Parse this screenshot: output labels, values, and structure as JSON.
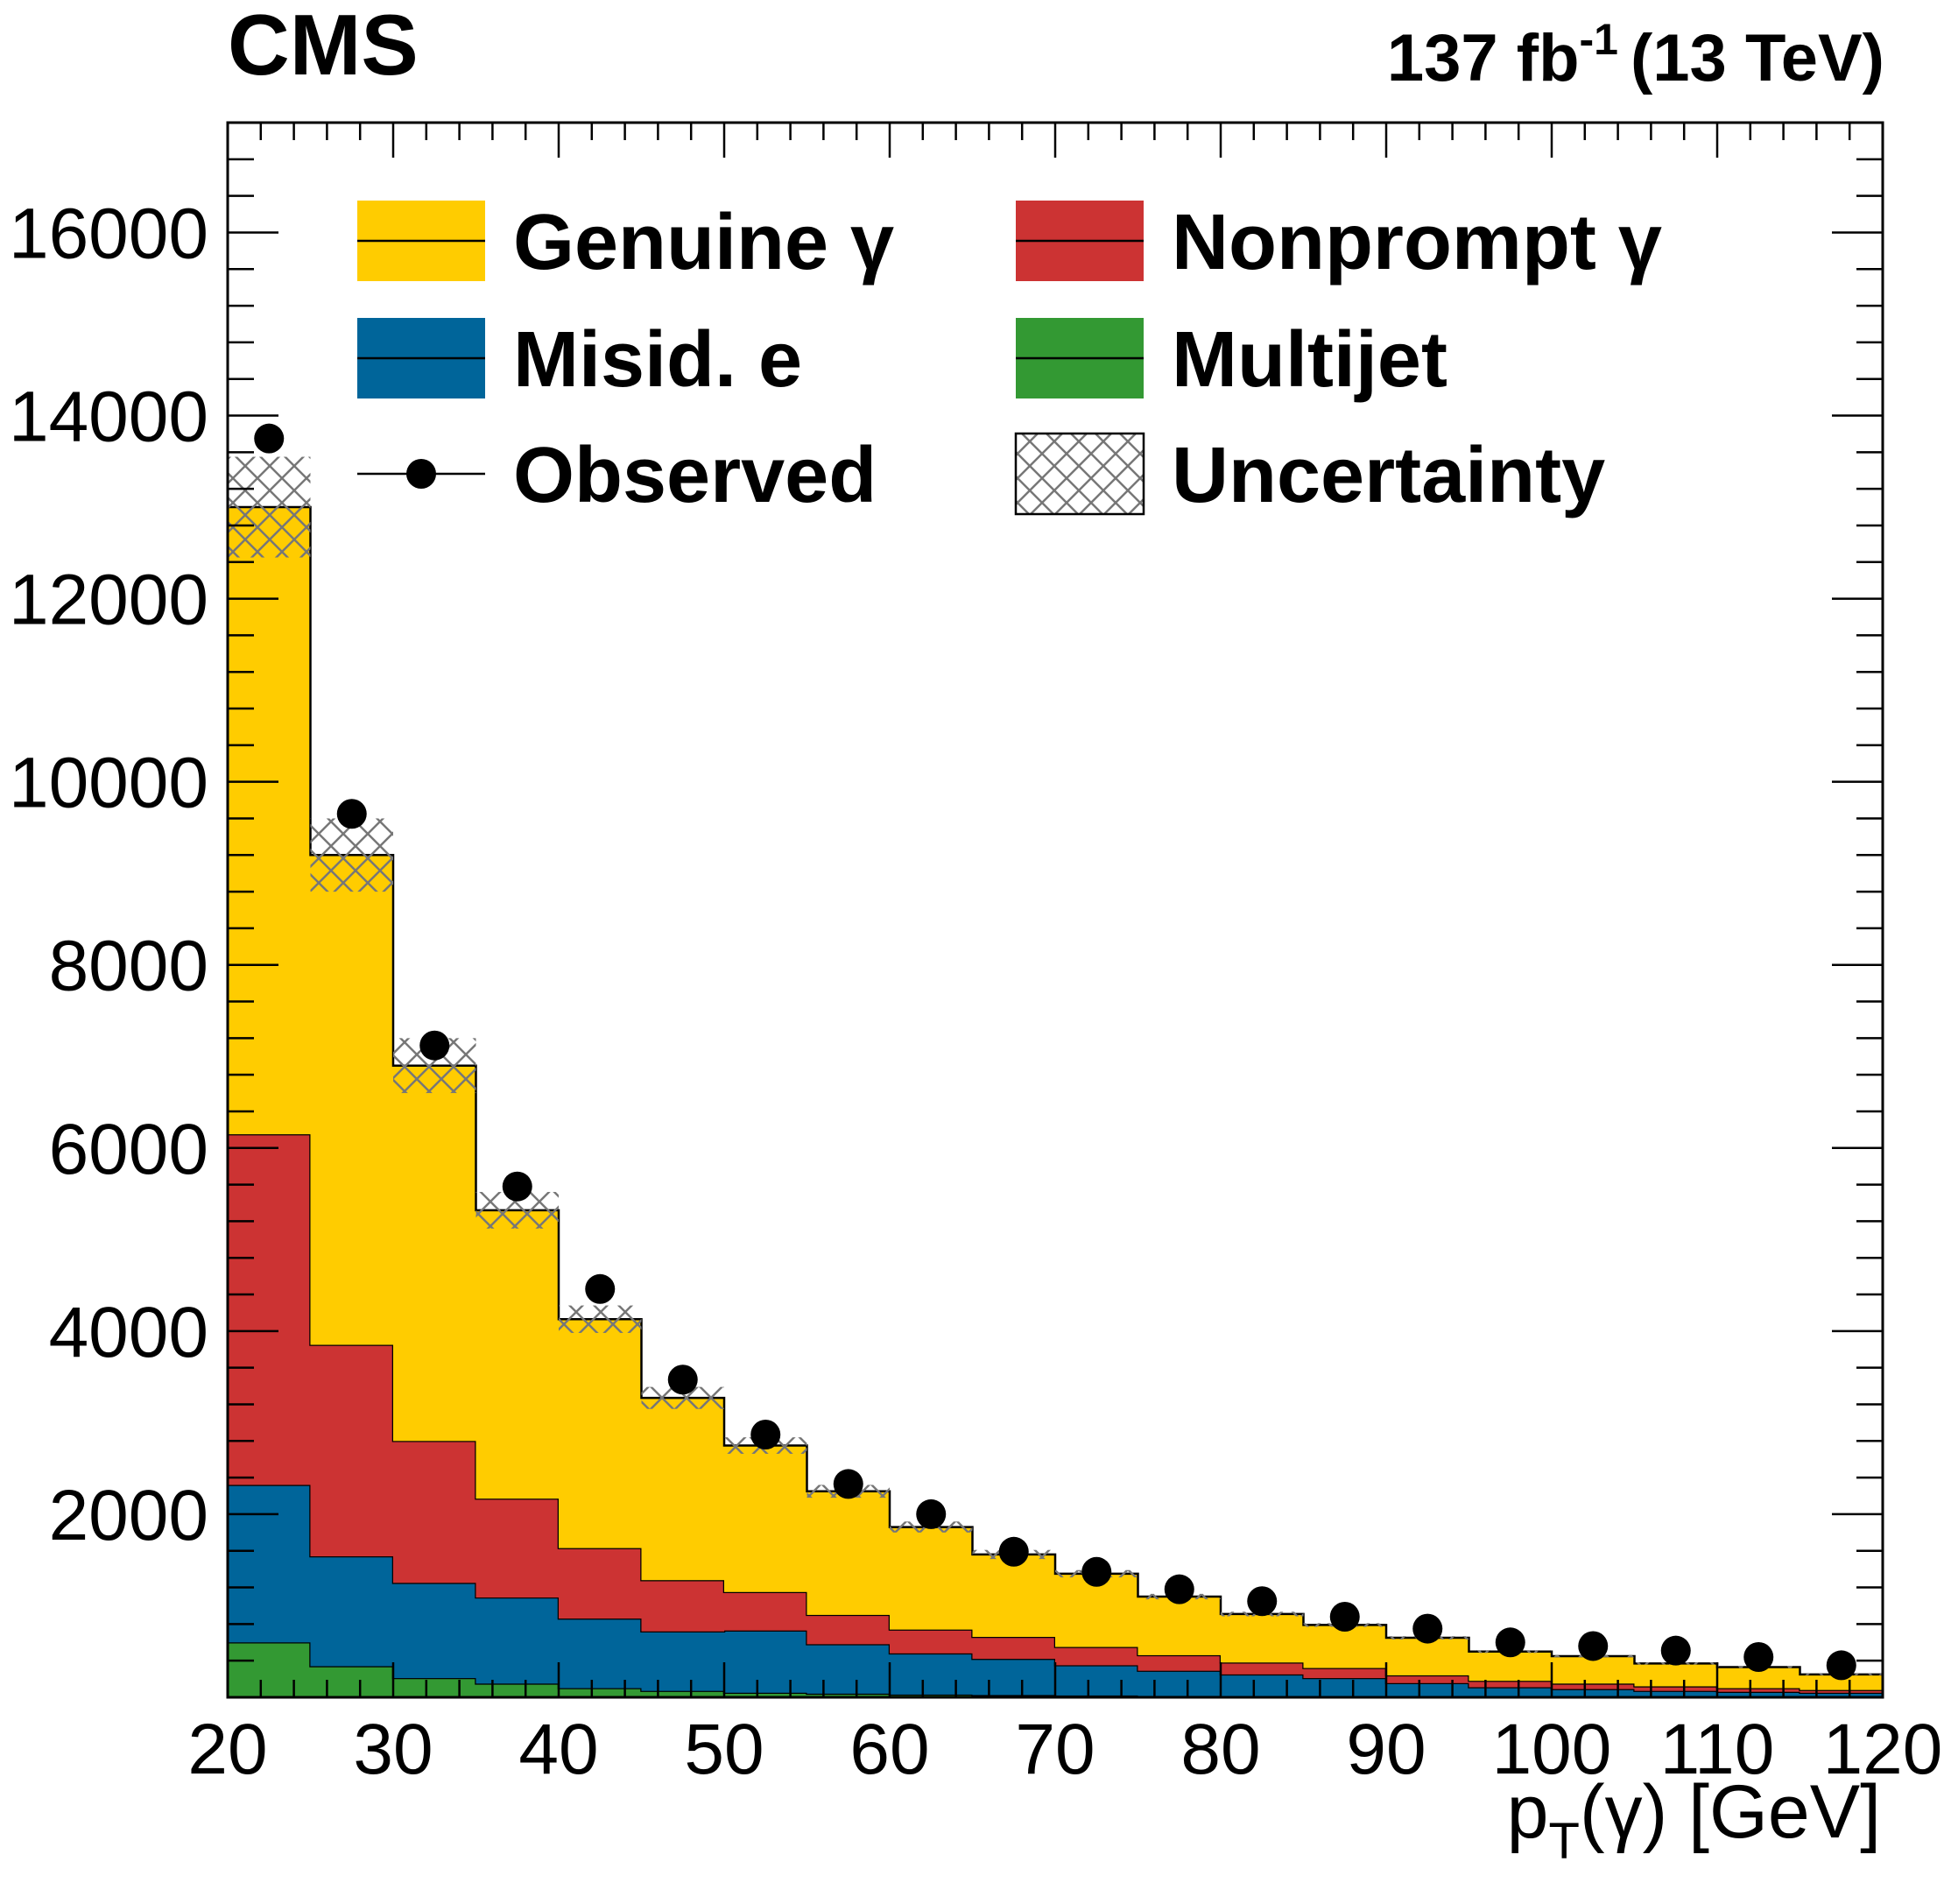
{
  "chart_data": {
    "type": "bar",
    "stacked": true,
    "experiment_label": "CMS",
    "luminosity_label": {
      "main": "137 fb",
      "superscript": "-1",
      "suffix": "(13 TeV)"
    },
    "xlabel": {
      "prefix": "p",
      "subscript": "T",
      "suffix": "(γ) [GeV]"
    },
    "ylabel": "",
    "xlim": [
      20,
      120
    ],
    "ylim": [
      0,
      17200
    ],
    "x_ticks": [
      20,
      30,
      40,
      50,
      60,
      70,
      80,
      90,
      100,
      110,
      120
    ],
    "x_tick_labels": [
      "20",
      "30",
      "40",
      "50",
      "60",
      "70",
      "80",
      "90",
      "100",
      "110",
      "120"
    ],
    "y_ticks": [
      2000,
      4000,
      6000,
      8000,
      10000,
      12000,
      14000,
      16000
    ],
    "y_tick_labels": [
      "2000",
      "4000",
      "6000",
      "8000",
      "10000",
      "12000",
      "14000",
      "16000"
    ],
    "bin_edges": [
      20,
      25,
      30,
      35,
      40,
      45,
      50,
      55,
      60,
      65,
      70,
      75,
      80,
      85,
      90,
      95,
      100,
      105,
      110,
      115,
      120
    ],
    "series": [
      {
        "name": "Multijet",
        "color": "#339933",
        "values": [
          600,
          340,
          210,
          150,
          100,
          70,
          50,
          40,
          30,
          25,
          20,
          15,
          12,
          10,
          8,
          6,
          5,
          4,
          3,
          3
        ]
      },
      {
        "name": "Misid. e",
        "color": "#00659a",
        "values": [
          1720,
          1200,
          1040,
          940,
          760,
          650,
          680,
          540,
          450,
          395,
          330,
          275,
          238,
          200,
          147,
          104,
          85,
          66,
          57,
          47
        ]
      },
      {
        "name": "Nonprompt γ",
        "color": "#cc3333",
        "values": [
          3830,
          2310,
          1550,
          1080,
          770,
          560,
          420,
          320,
          260,
          240,
          200,
          170,
          130,
          110,
          85,
          70,
          60,
          50,
          40,
          30
        ]
      },
      {
        "name": "Genuine γ",
        "color": "#ffcc00",
        "values": [
          6850,
          5350,
          4100,
          3150,
          2500,
          1990,
          1600,
          1350,
          1120,
          900,
          800,
          640,
          530,
          470,
          410,
          320,
          300,
          250,
          230,
          170
        ]
      }
    ],
    "totals": [
      13000,
      9200,
      6900,
      5320,
      4130,
      3270,
      2750,
      2250,
      1860,
      1560,
      1350,
      1100,
      910,
      790,
      650,
      500,
      450,
      370,
      330,
      250
    ],
    "uncertainty": {
      "name": "Uncertainty",
      "values": [
        550,
        400,
        300,
        200,
        150,
        120,
        90,
        70,
        60,
        50,
        40,
        30,
        25,
        20,
        18,
        15,
        13,
        12,
        10,
        9
      ]
    },
    "observed": {
      "name": "Observed",
      "x": [
        22.5,
        27.5,
        32.5,
        37.5,
        42.5,
        47.5,
        52.5,
        57.5,
        62.5,
        67.5,
        72.5,
        77.5,
        82.5,
        87.5,
        92.5,
        97.5,
        102.5,
        107.5,
        112.5,
        117.5
      ],
      "y": [
        13750,
        9650,
        7120,
        5580,
        4460,
        3470,
        2870,
        2330,
        2000,
        1590,
        1370,
        1180,
        1050,
        880,
        750,
        600,
        560,
        510,
        440,
        350
      ]
    },
    "legend": {
      "placement": "top",
      "entries": [
        {
          "label": "Genuine γ",
          "kind": "fill",
          "color": "#ffcc00"
        },
        {
          "label": "Nonprompt γ",
          "kind": "fill",
          "color": "#cc3333"
        },
        {
          "label": "Misid. e",
          "kind": "fill",
          "color": "#00659a"
        },
        {
          "label": "Multijet",
          "kind": "fill",
          "color": "#339933"
        },
        {
          "label": "Observed",
          "kind": "marker",
          "color": "#000000"
        },
        {
          "label": "Uncertainty",
          "kind": "hatch",
          "color": "#777777"
        }
      ]
    },
    "grid": false
  }
}
